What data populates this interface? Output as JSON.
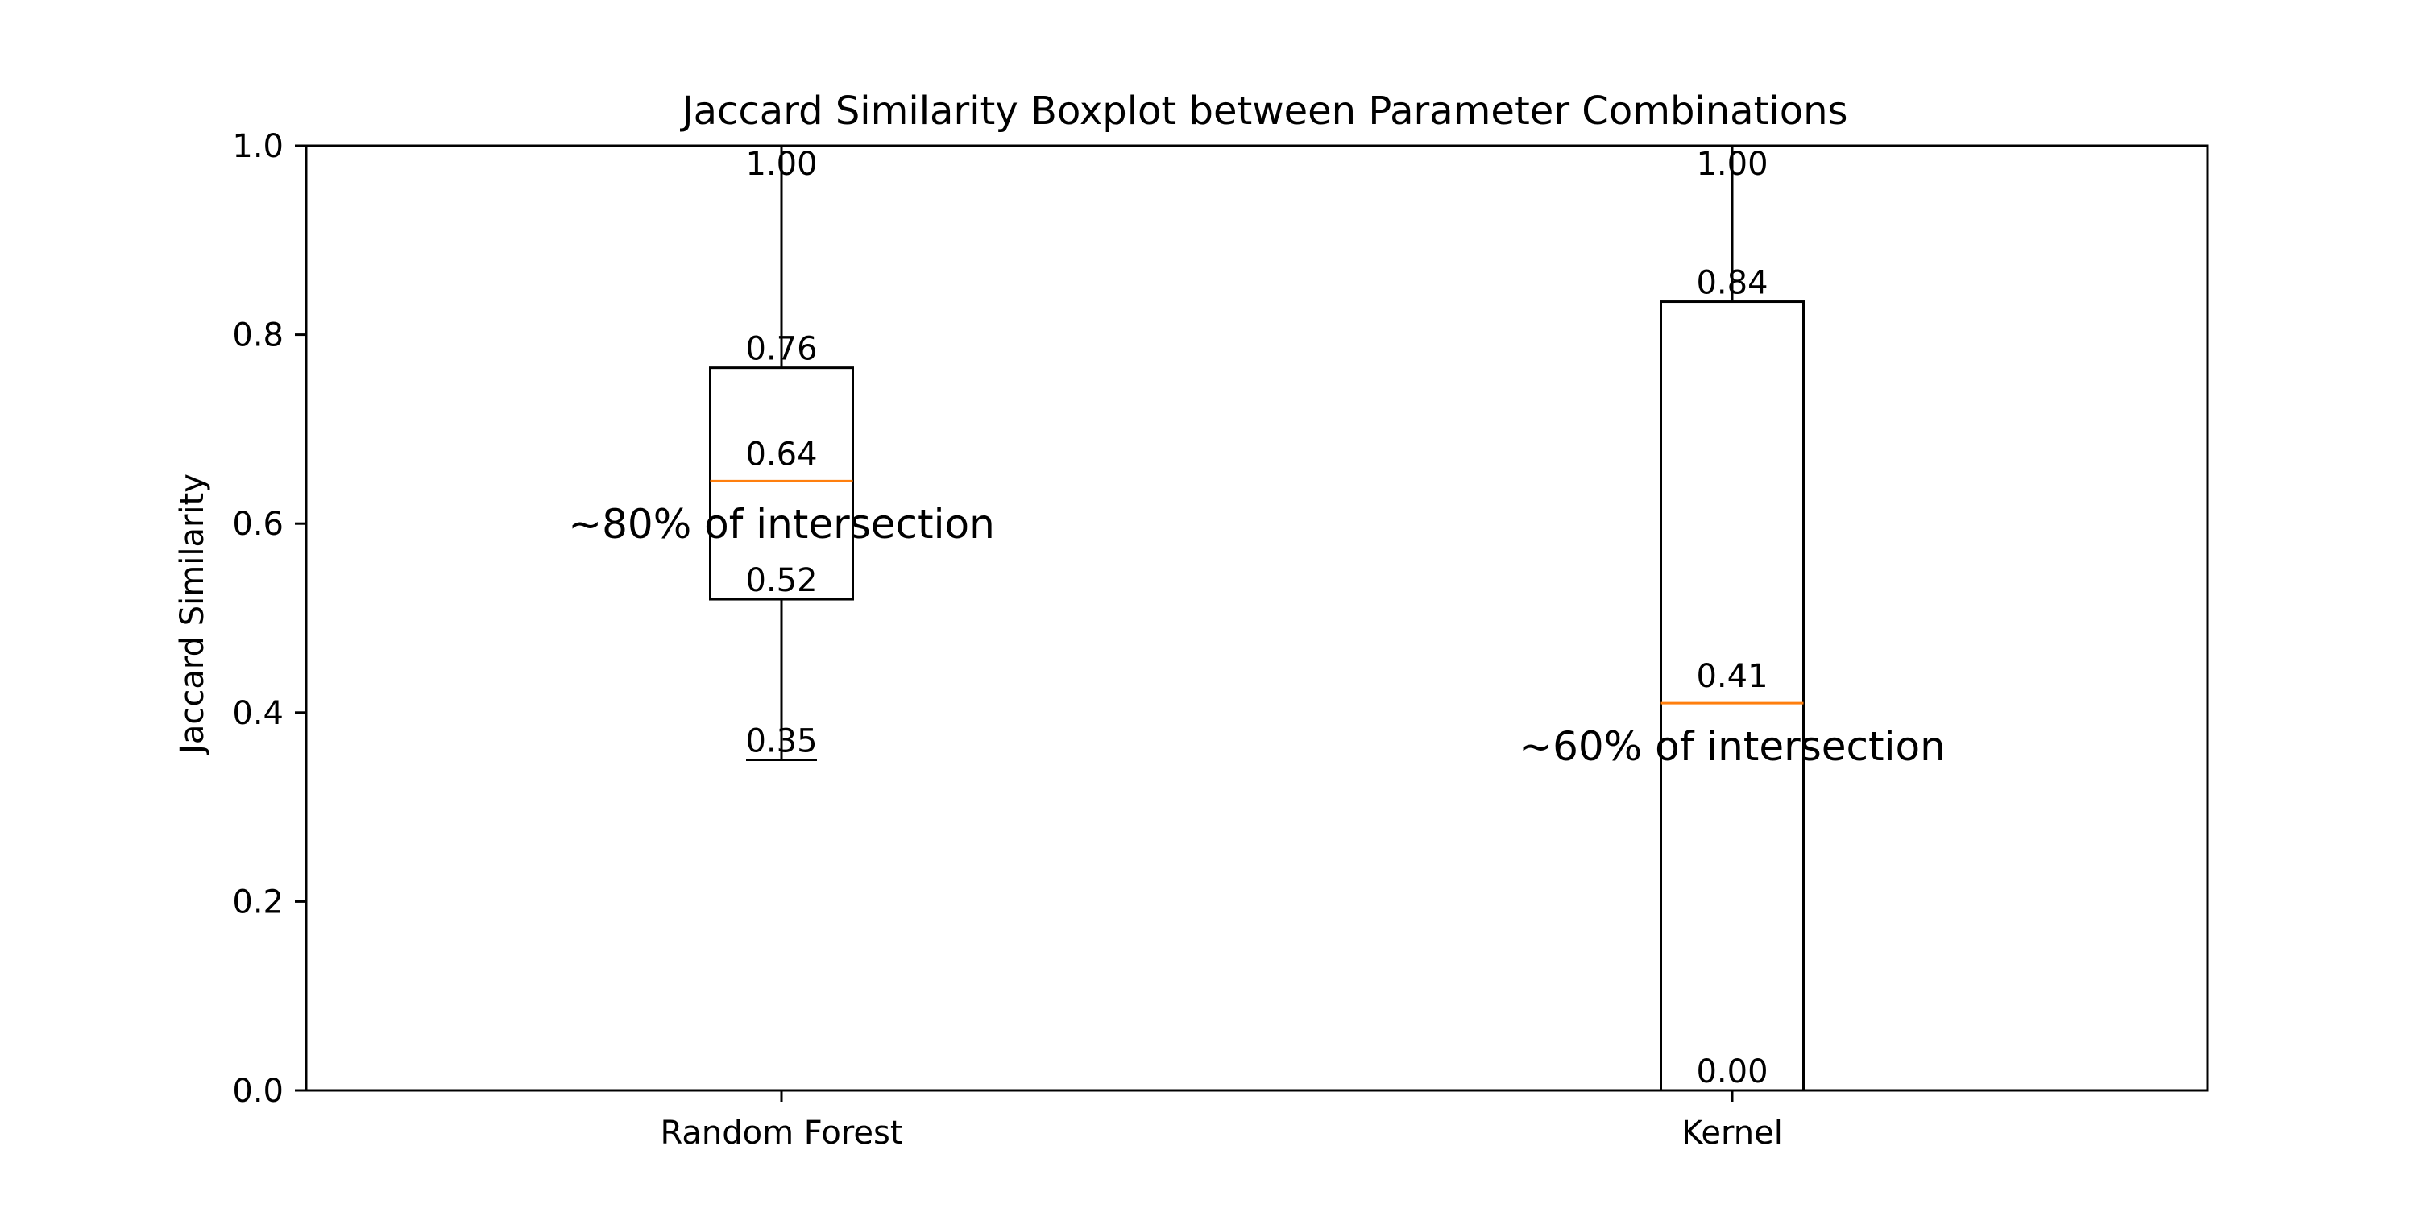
{
  "chart_data": {
    "type": "box",
    "title": "Jaccard Similarity Boxplot between Parameter Combinations",
    "xlabel": "",
    "ylabel": "Jaccard Similarity",
    "ylim": [
      0,
      1
    ],
    "yticks": [
      0,
      0.2,
      0.4,
      0.6,
      0.8,
      1.0
    ],
    "ytick_labels": [
      "0.0",
      "0.2",
      "0.4",
      "0.6",
      "0.8",
      "1.0"
    ],
    "grid": false,
    "categories": [
      "Random Forest",
      "Kernel"
    ],
    "boxes": [
      {
        "category": "Random Forest",
        "whisker_low": 0.35,
        "q1": 0.52,
        "median": 0.645,
        "q3": 0.765,
        "whisker_high": 1.0,
        "labels": {
          "whisker_low": "0.35",
          "q1": "0.52",
          "median": "0.64",
          "q3": "0.76",
          "whisker_high": "1.00"
        },
        "annotation": "~80% of intersection",
        "annotation_y": 0.6
      },
      {
        "category": "Kernel",
        "whisker_low": 0.0,
        "q1": 0.0,
        "median": 0.41,
        "q3": 0.835,
        "whisker_high": 1.0,
        "labels": {
          "whisker_low": "0.00",
          "q1": "0.00",
          "median": "0.41",
          "q3": "0.84",
          "whisker_high": "1.00"
        },
        "annotation": "~60% of intersection",
        "annotation_y": 0.365
      }
    ],
    "colors": {
      "box": "#000000",
      "median": "#ff7f0e",
      "axes": "#000000"
    }
  }
}
